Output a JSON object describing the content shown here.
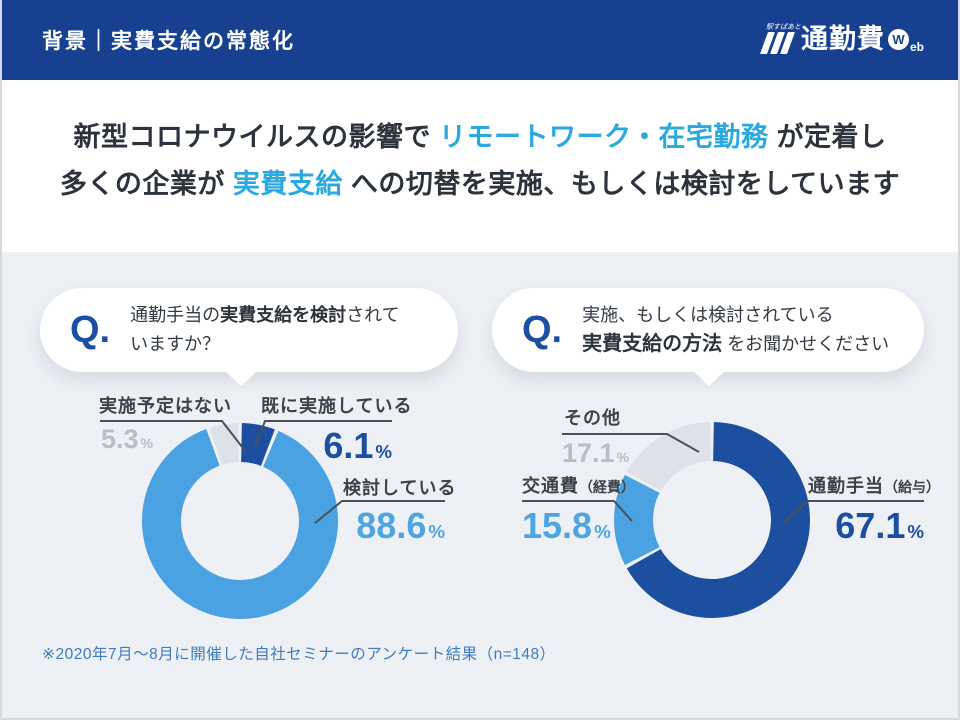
{
  "header": {
    "title": "背景｜実費支給の常態化",
    "logo": {
      "small_text": "駅すぱあと",
      "brand": "通勤費",
      "badge_w": "W",
      "badge_eb": "eb"
    }
  },
  "headline": {
    "l1a": "新型コロナウイルスの影響で ",
    "l1b": "リモートワーク・在宅勤務",
    "l1c": " が定着し",
    "l2a": "多くの企業が ",
    "l2b": "実費支給",
    "l2c": " への切替を実施、もしくは検討をしています",
    "highlight_color": "#29a9e0"
  },
  "questions": {
    "q_mark": "Q.",
    "q1": {
      "pre": "通勤手当の",
      "bold": "実費支給を検討",
      "post": "されて",
      "line2": "いますか？"
    },
    "q2": {
      "line1": "実施、もしくは検討されている",
      "bold": "実費支給の方法",
      "post": " をお聞かせください"
    }
  },
  "chart_data": [
    {
      "type": "donut",
      "title": "通勤手当の実費支給を検討されていますか？",
      "unit": "%",
      "segments": [
        {
          "label": "既に実施している",
          "value": 6.1,
          "num": "6.1",
          "color": "#1d4fa1"
        },
        {
          "label": "検討している",
          "value": 88.6,
          "num": "88.6",
          "color": "#4aa2e2"
        },
        {
          "label": "実施予定はない",
          "value": 5.3,
          "num": "5.3",
          "color": "#dde2e8"
        }
      ]
    },
    {
      "type": "donut",
      "title": "実施、もしくは検討されている実費支給の方法",
      "unit": "%",
      "segments": [
        {
          "label": "通勤手当（給与）",
          "label_main": "通勤手当",
          "label_paren": "（給与）",
          "value": 67.1,
          "num": "67.1",
          "color": "#1d4fa1"
        },
        {
          "label": "交通費（経費）",
          "label_main": "交通費",
          "label_paren": "（経費）",
          "value": 15.8,
          "num": "15.8",
          "color": "#4aa2e2"
        },
        {
          "label": "その他",
          "label_main": "その他",
          "label_paren": "",
          "value": 17.1,
          "num": "17.1",
          "color": "#dde2e8"
        }
      ]
    }
  ],
  "footnote": "※2020年7月～8月に開催した自社セミナーのアンケート結果（n=148）",
  "colors": {
    "header_bg": "#174190",
    "accent_cyan": "#29a9e0",
    "dark_blue": "#1d4fa1",
    "light_blue": "#4fa5e2",
    "gray_slice": "#dde2e8",
    "survey_bg": "#edf0f4",
    "footnote_blue": "#3e7cc0"
  }
}
